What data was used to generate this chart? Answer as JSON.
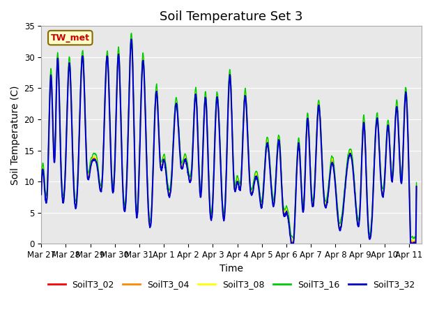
{
  "title": "Soil Temperature Set 3",
  "xlabel": "Time",
  "ylabel": "Soil Temperature (C)",
  "ylim": [
    0,
    35
  ],
  "yticks": [
    0,
    5,
    10,
    15,
    20,
    25,
    30,
    35
  ],
  "xtick_labels": [
    "Mar 27",
    "Mar 28",
    "Mar 29",
    "Mar 30",
    "Mar 31",
    "Apr 1",
    "Apr 2",
    "Apr 3",
    "Apr 4",
    "Apr 5",
    "Apr 6",
    "Apr 7",
    "Apr 8",
    "Apr 9",
    "Apr 10",
    "Apr 11"
  ],
  "xtick_positions": [
    0,
    1,
    2,
    3,
    4,
    5,
    6,
    7,
    8,
    9,
    10,
    11,
    12,
    13,
    14,
    15
  ],
  "annotation_text": "TW_met",
  "annotation_color": "#cc0000",
  "annotation_bg": "#ffffcc",
  "annotation_border": "#886600",
  "series": [
    "SoilT3_02",
    "SoilT3_04",
    "SoilT3_08",
    "SoilT3_16",
    "SoilT3_32"
  ],
  "colors": [
    "#ff0000",
    "#ff8800",
    "#ffff00",
    "#00cc00",
    "#0000cc"
  ],
  "linewidths": [
    1.0,
    1.0,
    1.0,
    1.0,
    1.5
  ],
  "bg_color": "#e8e8e8",
  "fig_bg": "#ffffff",
  "title_fontsize": 13,
  "axis_fontsize": 10,
  "tick_fontsize": 8.5,
  "keypoints": [
    [
      0.0,
      8.0
    ],
    [
      0.1,
      11.0
    ],
    [
      0.25,
      8.5
    ],
    [
      0.4,
      27.0
    ],
    [
      0.55,
      13.5
    ],
    [
      0.65,
      29.0
    ],
    [
      0.8,
      13.0
    ],
    [
      1.0,
      13.5
    ],
    [
      1.15,
      29.0
    ],
    [
      1.3,
      12.0
    ],
    [
      1.5,
      11.0
    ],
    [
      1.7,
      30.0
    ],
    [
      1.85,
      13.0
    ],
    [
      2.0,
      12.0
    ],
    [
      2.15,
      13.5
    ],
    [
      2.3,
      12.0
    ],
    [
      2.5,
      11.0
    ],
    [
      2.7,
      30.0
    ],
    [
      2.85,
      12.5
    ],
    [
      3.0,
      12.5
    ],
    [
      3.15,
      30.5
    ],
    [
      3.3,
      12.0
    ],
    [
      3.5,
      11.5
    ],
    [
      3.7,
      32.0
    ],
    [
      3.85,
      7.0
    ],
    [
      4.0,
      12.5
    ],
    [
      4.15,
      29.5
    ],
    [
      4.3,
      13.0
    ],
    [
      4.5,
      5.0
    ],
    [
      4.7,
      24.5
    ],
    [
      4.85,
      13.0
    ],
    [
      5.0,
      13.5
    ],
    [
      5.15,
      9.0
    ],
    [
      5.3,
      9.5
    ],
    [
      5.5,
      22.5
    ],
    [
      5.7,
      12.5
    ],
    [
      5.85,
      13.5
    ],
    [
      6.0,
      11.0
    ],
    [
      6.15,
      12.5
    ],
    [
      6.3,
      24.0
    ],
    [
      6.5,
      7.5
    ],
    [
      6.7,
      23.5
    ],
    [
      6.85,
      8.0
    ],
    [
      7.0,
      7.0
    ],
    [
      7.15,
      23.0
    ],
    [
      7.35,
      9.0
    ],
    [
      7.5,
      6.0
    ],
    [
      7.7,
      27.0
    ],
    [
      7.85,
      10.5
    ],
    [
      8.0,
      10.0
    ],
    [
      8.15,
      10.0
    ],
    [
      8.3,
      23.5
    ],
    [
      8.5,
      10.0
    ],
    [
      8.7,
      10.0
    ],
    [
      8.85,
      9.5
    ],
    [
      9.0,
      6.0
    ],
    [
      9.2,
      16.0
    ],
    [
      9.5,
      6.5
    ],
    [
      9.7,
      16.5
    ],
    [
      9.85,
      6.0
    ],
    [
      10.0,
      5.0
    ],
    [
      10.15,
      1.5
    ],
    [
      10.3,
      0.7
    ],
    [
      10.5,
      16.0
    ],
    [
      10.7,
      5.5
    ],
    [
      10.85,
      20.0
    ],
    [
      11.0,
      9.0
    ],
    [
      11.15,
      9.0
    ],
    [
      11.3,
      22.0
    ],
    [
      11.5,
      9.0
    ],
    [
      11.7,
      8.0
    ],
    [
      11.85,
      13.0
    ],
    [
      12.0,
      9.0
    ],
    [
      12.15,
      2.5
    ],
    [
      12.3,
      5.0
    ],
    [
      12.5,
      13.0
    ],
    [
      12.7,
      12.5
    ],
    [
      12.85,
      5.0
    ],
    [
      13.0,
      5.5
    ],
    [
      13.15,
      19.5
    ],
    [
      13.3,
      5.5
    ],
    [
      13.5,
      5.0
    ],
    [
      13.7,
      20.0
    ],
    [
      13.85,
      10.0
    ],
    [
      14.0,
      10.0
    ],
    [
      14.15,
      19.0
    ],
    [
      14.3,
      10.0
    ],
    [
      14.5,
      22.0
    ],
    [
      14.7,
      10.0
    ],
    [
      14.85,
      24.0
    ],
    [
      15.0,
      10.0
    ],
    [
      15.3,
      9.0
    ]
  ]
}
